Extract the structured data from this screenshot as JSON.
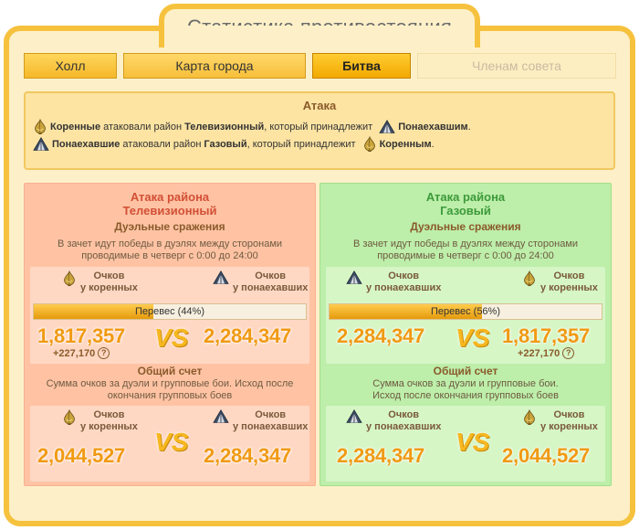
{
  "page": {
    "title": "Статистика противостояния"
  },
  "tabs": [
    {
      "label": "Холл"
    },
    {
      "label": "Карта города"
    },
    {
      "label": "Битва"
    },
    {
      "label": "Членам совета"
    }
  ],
  "attack": {
    "title": "Атака",
    "line1": {
      "attacker": "Коренные",
      "mid": "атаковали район",
      "district": "Телевизионный",
      "owner_text": ", который принадлежит",
      "owner": "Понаехавшим",
      "end": "."
    },
    "line2": {
      "attacker": "Понаехавшие",
      "mid": "атаковали район",
      "district": "Газовый",
      "owner_text": ", который принадлежит",
      "owner": "Коренным",
      "end": "."
    }
  },
  "panels": [
    {
      "title1": "Атака района",
      "title2": "Телевизионный",
      "duel_title": "Дуэльные сражения",
      "duel_desc1": "В зачет идут победы в дуэлях между сторонами",
      "duel_desc2": "проводимые в четверг с 0:00 до 24:00",
      "left_label1": "Очков",
      "left_label2": "у коренных",
      "right_label1": "Очков",
      "right_label2": "у понаехавших",
      "left_icon": "onion-icon",
      "right_icon": "tent-icon",
      "advantage_text": "Перевес (44%)",
      "advantage": 44,
      "duel_left": "1,817,357",
      "duel_right": "2,284,347",
      "delta": "+227,170",
      "vs": "VS",
      "total_title": "Общий счет",
      "total_desc1": "Сумма очков за дуэли и групповые бои. Исход после",
      "total_desc2": "окончания групповых боев",
      "total_left_label1": "Очков",
      "total_left_label2": "у коренных",
      "total_right_label1": "Очков",
      "total_right_label2": "у понаехавших",
      "total_left": "2,044,527",
      "total_right": "2,284,347"
    },
    {
      "title1": "Атака района",
      "title2": "Газовый",
      "duel_title": "Дуэльные сражения",
      "duel_desc1": "В зачет идут победы в дуэлях между сторонами",
      "duel_desc2": "проводимые в четверг с 0:00 до 24:00",
      "left_label1": "Очков",
      "left_label2": "у понаехавших",
      "right_label1": "Очков",
      "right_label2": "у коренных",
      "left_icon": "tent-icon",
      "right_icon": "onion-icon",
      "advantage_text": "Перевес (56%)",
      "advantage": 56,
      "duel_left": "2,284,347",
      "duel_right": "1,817,357",
      "delta": "+227,170",
      "vs": "VS",
      "total_title": "Общий счет",
      "total_desc1": "Сумма очков за дуэли и групповые бои.",
      "total_desc2": "Исход после окончания групповых боев",
      "total_left_label1": "Очков",
      "total_left_label2": "у понаехавших",
      "total_right_label1": "Очков",
      "total_right_label2": "у коренных",
      "total_left": "2,284,347",
      "total_right": "2,044,527"
    }
  ],
  "colors": {
    "accent": "#f6c23e",
    "left_panel": "#ffc3a4",
    "right_panel": "#bdeeaa",
    "score": "#f09a13"
  }
}
